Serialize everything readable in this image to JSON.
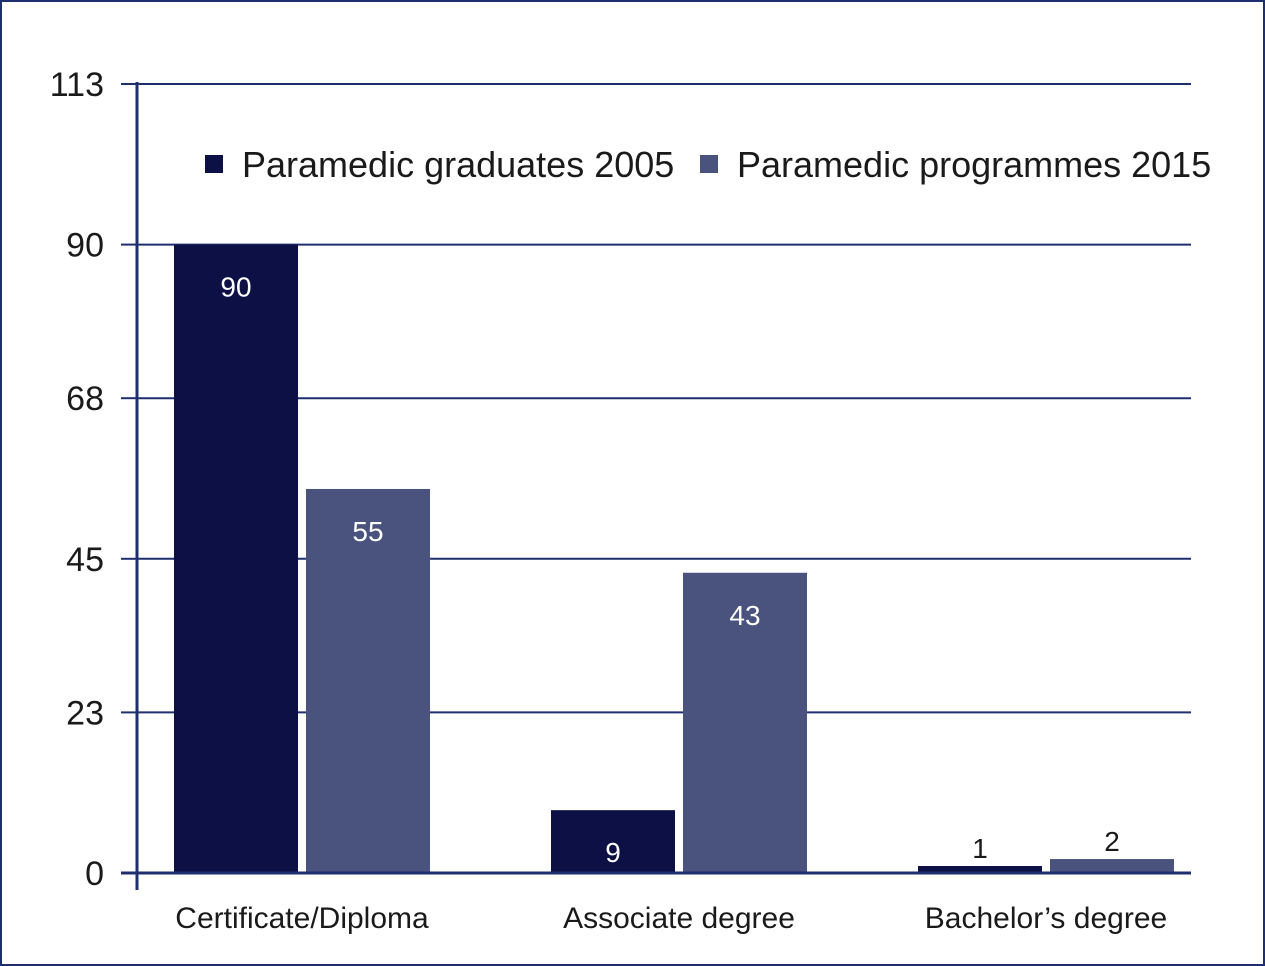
{
  "chart_data": {
    "type": "bar",
    "title": "",
    "xlabel": "",
    "ylabel": "",
    "ylim": [
      0,
      113
    ],
    "yticks": [
      0,
      23,
      45,
      68,
      90,
      113
    ],
    "grid": "horizontal",
    "legend_placement": "top",
    "categories": [
      "Certificate/Diploma",
      "Associate degree",
      "Bachelor’s degree"
    ],
    "series": [
      {
        "name": "Paramedic graduates 2005",
        "values": [
          90,
          9,
          1
        ],
        "color": "#0c1045",
        "label_color": "#ffffff"
      },
      {
        "name": "Paramedic programmes 2015",
        "values": [
          55,
          43,
          2
        ],
        "color": "#4a527e",
        "label_color": "#ffffff"
      }
    ],
    "axis_color": "#1f2f6e"
  }
}
